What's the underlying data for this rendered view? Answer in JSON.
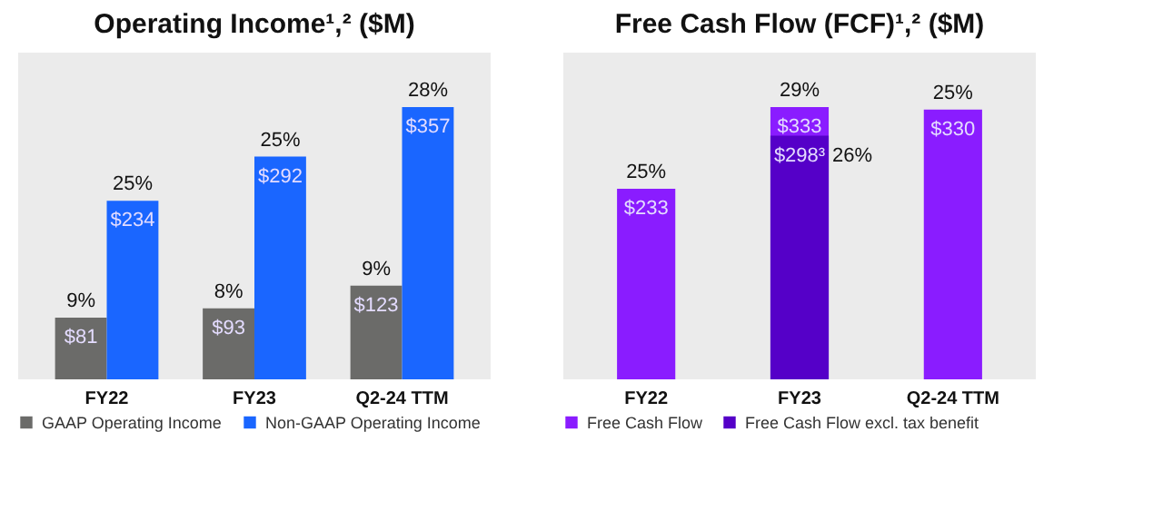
{
  "chart_data": [
    {
      "type": "bar",
      "title": "Operating Income¹,² ($M)",
      "categories": [
        "FY22",
        "FY23",
        "Q2-24 TTM"
      ],
      "series": [
        {
          "name": "GAAP Operating Income",
          "color": "#6b6b69",
          "values": [
            81,
            93,
            123
          ],
          "value_labels": [
            "$81",
            "$93",
            "$123"
          ]
        },
        {
          "name": "Non-GAAP Operating Income",
          "color": "#1a66ff",
          "values": [
            234,
            292,
            357
          ],
          "value_labels": [
            "$234",
            "$292",
            "$357"
          ]
        }
      ],
      "annotations": [
        {
          "text": "9%",
          "x": "FY22",
          "y": 81
        },
        {
          "text": "25%",
          "x": "FY22",
          "y": 234
        },
        {
          "text": "8%",
          "x": "FY23",
          "y": 93
        },
        {
          "text": "25%",
          "x": "FY23",
          "y": 292
        },
        {
          "text": "9%",
          "x": "Q2-24 TTM",
          "y": 123
        },
        {
          "text": "28%",
          "x": "Q2-24 TTM",
          "y": 357
        }
      ],
      "legend": "bottom"
    },
    {
      "type": "bar",
      "title": "Free Cash Flow (FCF)¹,² ($M)",
      "categories": [
        "FY22",
        "FY23",
        "Q2-24 TTM"
      ],
      "series": [
        {
          "name": "Free Cash Flow",
          "color": "#8a1cff",
          "values": [
            233,
            333,
            330
          ],
          "value_labels": [
            "$233",
            "$333",
            "$330"
          ]
        },
        {
          "name": "Free Cash Flow excl. tax benefit",
          "color": "#5500c8",
          "values": [
            null,
            298,
            null
          ],
          "value_labels": [
            null,
            "$298³",
            null
          ]
        }
      ],
      "annotations": [
        {
          "text": "25%",
          "x": "FY22",
          "y": 233
        },
        {
          "text": "29%",
          "x": "FY23",
          "y": 333
        },
        {
          "text": "26%",
          "x": "FY23",
          "y": 298
        },
        {
          "text": "25%",
          "x": "Q2-24 TTM",
          "y": 330
        }
      ],
      "legend": "bottom"
    }
  ]
}
